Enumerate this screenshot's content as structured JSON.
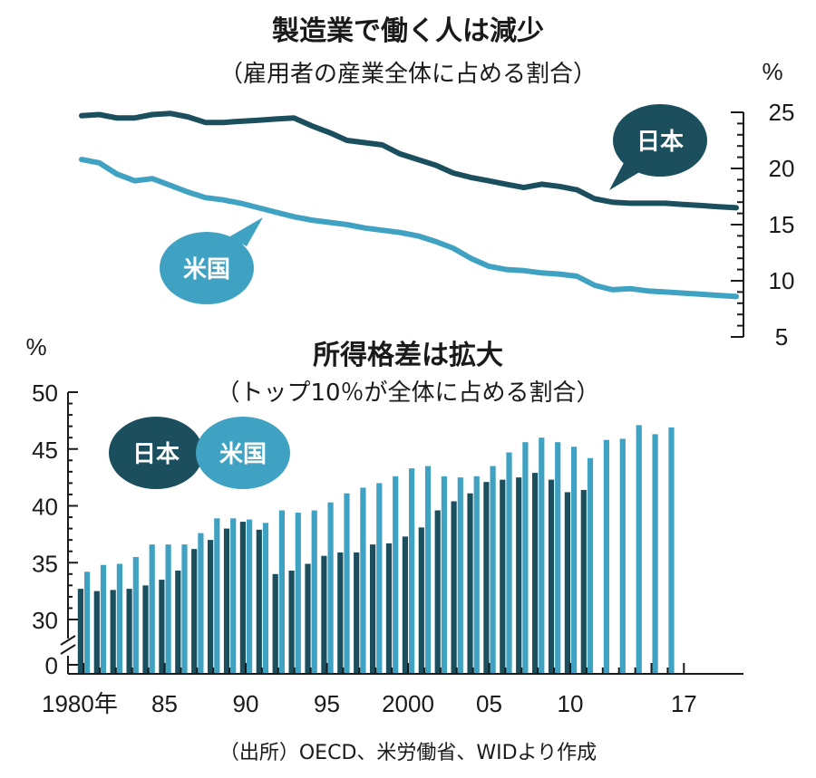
{
  "colors": {
    "japan": "#1b4f5e",
    "usa": "#3fa2c2",
    "text": "#1a1a1a"
  },
  "chart_data": [
    {
      "type": "line",
      "title": "製造業で働く人は減少",
      "subtitle": "（雇用者の産業全体に占める割合）",
      "unit": "%",
      "ylim": [
        5,
        25
      ],
      "yticks": [
        25,
        20,
        15,
        10,
        5
      ],
      "x": [
        1980,
        1981,
        1982,
        1983,
        1984,
        1985,
        1986,
        1987,
        1988,
        1989,
        1990,
        1991,
        1992,
        1993,
        1994,
        1995,
        1996,
        1997,
        1998,
        1999,
        2000,
        2001,
        2002,
        2003,
        2004,
        2005,
        2006,
        2007,
        2008,
        2009,
        2010,
        2011,
        2012,
        2013,
        2014,
        2015,
        2016,
        2017
      ],
      "series": [
        {
          "name": "日本",
          "values": [
            24.7,
            24.8,
            24.5,
            24.5,
            24.8,
            24.9,
            24.6,
            24.1,
            24.1,
            24.2,
            24.3,
            24.4,
            24.5,
            23.8,
            23.2,
            22.5,
            22.3,
            22.1,
            21.3,
            20.8,
            20.3,
            19.6,
            19.2,
            18.9,
            18.6,
            18.3,
            18.6,
            18.4,
            18.1,
            17.3,
            17.0,
            16.9,
            16.9,
            16.9,
            16.8,
            16.7,
            16.6,
            16.5
          ]
        },
        {
          "name": "米国",
          "values": [
            20.8,
            20.5,
            19.5,
            18.9,
            19.1,
            18.5,
            17.9,
            17.4,
            17.2,
            16.9,
            16.5,
            16.1,
            15.7,
            15.4,
            15.2,
            15.0,
            14.7,
            14.5,
            14.3,
            14.0,
            13.5,
            12.9,
            12.0,
            11.3,
            11.0,
            10.9,
            10.7,
            10.6,
            10.4,
            9.6,
            9.2,
            9.3,
            9.1,
            9.0,
            8.9,
            8.8,
            8.7,
            8.6
          ]
        }
      ],
      "xlabel": "",
      "ylabel": "%"
    },
    {
      "type": "bar",
      "title": "所得格差は拡大",
      "subtitle": "（トップ10％が全体に占める割合）",
      "unit": "%",
      "ylim": [
        0,
        50
      ],
      "axis_break": [
        0,
        25
      ],
      "yticks": [
        50,
        45,
        40,
        35,
        30,
        0
      ],
      "x": [
        1980,
        1981,
        1982,
        1983,
        1984,
        1985,
        1986,
        1987,
        1988,
        1989,
        1990,
        1991,
        1992,
        1993,
        1994,
        1995,
        1996,
        1997,
        1998,
        1999,
        2000,
        2001,
        2002,
        2003,
        2004,
        2005,
        2006,
        2007,
        2008,
        2009,
        2010,
        2011,
        2012,
        2013,
        2014,
        2015,
        2016,
        2017
      ],
      "xticks": [
        {
          "x": 1980,
          "label": "1980年"
        },
        {
          "x": 1985,
          "label": "85"
        },
        {
          "x": 1990,
          "label": "90"
        },
        {
          "x": 1995,
          "label": "95"
        },
        {
          "x": 2000,
          "label": "2000"
        },
        {
          "x": 2005,
          "label": "05"
        },
        {
          "x": 2010,
          "label": "10"
        },
        {
          "x": 2017,
          "label": "17"
        }
      ],
      "series": [
        {
          "name": "日本",
          "values": [
            32.7,
            32.5,
            32.6,
            32.7,
            33.0,
            33.5,
            34.3,
            36.2,
            37.0,
            38.0,
            38.6,
            37.9,
            34.0,
            34.3,
            34.9,
            35.6,
            35.9,
            35.9,
            36.6,
            36.7,
            37.3,
            38.1,
            39.6,
            40.4,
            41.1,
            42.1,
            42.3,
            42.5,
            42.9,
            42.3,
            41.2,
            41.4,
            null,
            null,
            null,
            null,
            null,
            null
          ]
        },
        {
          "name": "米国",
          "values": [
            34.2,
            34.8,
            34.9,
            35.5,
            36.6,
            36.6,
            36.6,
            37.6,
            38.9,
            38.9,
            38.8,
            38.5,
            39.6,
            39.4,
            39.6,
            40.3,
            41.1,
            41.6,
            42.0,
            42.6,
            43.3,
            43.5,
            42.6,
            42.5,
            42.6,
            43.5,
            44.7,
            45.6,
            46.0,
            45.6,
            45.2,
            44.2,
            45.8,
            45.9,
            47.1,
            46.3,
            46.9,
            null
          ]
        }
      ],
      "xlabel": "",
      "ylabel": "%"
    }
  ],
  "source_note": "（出所）OECD、米労働省、WIDより作成"
}
